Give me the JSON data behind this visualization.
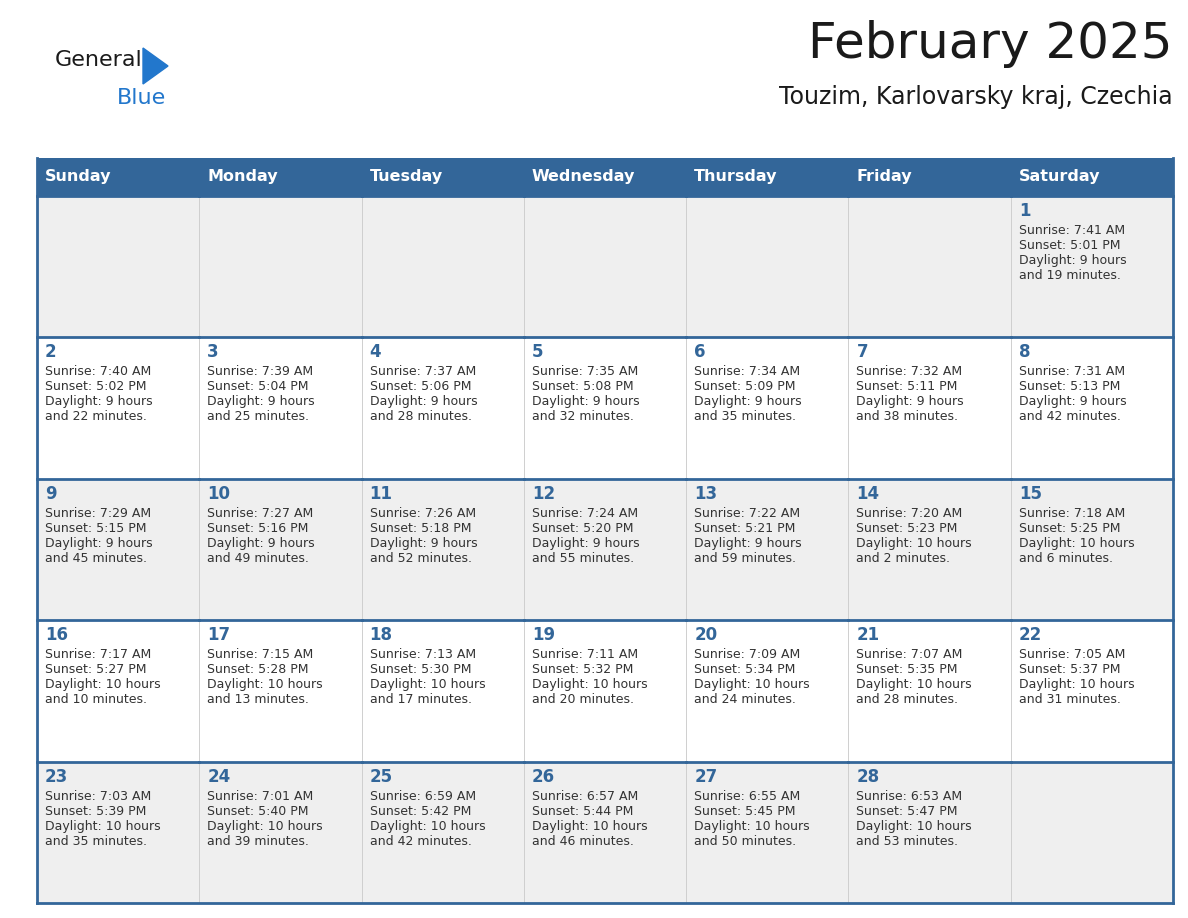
{
  "title": "February 2025",
  "subtitle": "Touzim, Karlovarsky kraj, Czechia",
  "days_of_week": [
    "Sunday",
    "Monday",
    "Tuesday",
    "Wednesday",
    "Thursday",
    "Friday",
    "Saturday"
  ],
  "header_bg": "#336699",
  "header_text": "#ffffff",
  "cell_bg_odd": "#efefef",
  "cell_bg_even": "#ffffff",
  "cell_border_color": "#336699",
  "day_number_color": "#336699",
  "info_text_color": "#333333",
  "logo_general_color": "#1a1a1a",
  "logo_blue_color": "#2277cc",
  "logo_triangle_color": "#2277cc",
  "title_color": "#1a1a1a",
  "subtitle_color": "#1a1a1a",
  "calendar_data": [
    [
      null,
      null,
      null,
      null,
      null,
      null,
      {
        "day": 1,
        "sunrise": "7:41 AM",
        "sunset": "5:01 PM",
        "daylight": "9 hours",
        "daylight2": "and 19 minutes."
      }
    ],
    [
      {
        "day": 2,
        "sunrise": "7:40 AM",
        "sunset": "5:02 PM",
        "daylight": "9 hours",
        "daylight2": "and 22 minutes."
      },
      {
        "day": 3,
        "sunrise": "7:39 AM",
        "sunset": "5:04 PM",
        "daylight": "9 hours",
        "daylight2": "and 25 minutes."
      },
      {
        "day": 4,
        "sunrise": "7:37 AM",
        "sunset": "5:06 PM",
        "daylight": "9 hours",
        "daylight2": "and 28 minutes."
      },
      {
        "day": 5,
        "sunrise": "7:35 AM",
        "sunset": "5:08 PM",
        "daylight": "9 hours",
        "daylight2": "and 32 minutes."
      },
      {
        "day": 6,
        "sunrise": "7:34 AM",
        "sunset": "5:09 PM",
        "daylight": "9 hours",
        "daylight2": "and 35 minutes."
      },
      {
        "day": 7,
        "sunrise": "7:32 AM",
        "sunset": "5:11 PM",
        "daylight": "9 hours",
        "daylight2": "and 38 minutes."
      },
      {
        "day": 8,
        "sunrise": "7:31 AM",
        "sunset": "5:13 PM",
        "daylight": "9 hours",
        "daylight2": "and 42 minutes."
      }
    ],
    [
      {
        "day": 9,
        "sunrise": "7:29 AM",
        "sunset": "5:15 PM",
        "daylight": "9 hours",
        "daylight2": "and 45 minutes."
      },
      {
        "day": 10,
        "sunrise": "7:27 AM",
        "sunset": "5:16 PM",
        "daylight": "9 hours",
        "daylight2": "and 49 minutes."
      },
      {
        "day": 11,
        "sunrise": "7:26 AM",
        "sunset": "5:18 PM",
        "daylight": "9 hours",
        "daylight2": "and 52 minutes."
      },
      {
        "day": 12,
        "sunrise": "7:24 AM",
        "sunset": "5:20 PM",
        "daylight": "9 hours",
        "daylight2": "and 55 minutes."
      },
      {
        "day": 13,
        "sunrise": "7:22 AM",
        "sunset": "5:21 PM",
        "daylight": "9 hours",
        "daylight2": "and 59 minutes."
      },
      {
        "day": 14,
        "sunrise": "7:20 AM",
        "sunset": "5:23 PM",
        "daylight": "10 hours",
        "daylight2": "and 2 minutes."
      },
      {
        "day": 15,
        "sunrise": "7:18 AM",
        "sunset": "5:25 PM",
        "daylight": "10 hours",
        "daylight2": "and 6 minutes."
      }
    ],
    [
      {
        "day": 16,
        "sunrise": "7:17 AM",
        "sunset": "5:27 PM",
        "daylight": "10 hours",
        "daylight2": "and 10 minutes."
      },
      {
        "day": 17,
        "sunrise": "7:15 AM",
        "sunset": "5:28 PM",
        "daylight": "10 hours",
        "daylight2": "and 13 minutes."
      },
      {
        "day": 18,
        "sunrise": "7:13 AM",
        "sunset": "5:30 PM",
        "daylight": "10 hours",
        "daylight2": "and 17 minutes."
      },
      {
        "day": 19,
        "sunrise": "7:11 AM",
        "sunset": "5:32 PM",
        "daylight": "10 hours",
        "daylight2": "and 20 minutes."
      },
      {
        "day": 20,
        "sunrise": "7:09 AM",
        "sunset": "5:34 PM",
        "daylight": "10 hours",
        "daylight2": "and 24 minutes."
      },
      {
        "day": 21,
        "sunrise": "7:07 AM",
        "sunset": "5:35 PM",
        "daylight": "10 hours",
        "daylight2": "and 28 minutes."
      },
      {
        "day": 22,
        "sunrise": "7:05 AM",
        "sunset": "5:37 PM",
        "daylight": "10 hours",
        "daylight2": "and 31 minutes."
      }
    ],
    [
      {
        "day": 23,
        "sunrise": "7:03 AM",
        "sunset": "5:39 PM",
        "daylight": "10 hours",
        "daylight2": "and 35 minutes."
      },
      {
        "day": 24,
        "sunrise": "7:01 AM",
        "sunset": "5:40 PM",
        "daylight": "10 hours",
        "daylight2": "and 39 minutes."
      },
      {
        "day": 25,
        "sunrise": "6:59 AM",
        "sunset": "5:42 PM",
        "daylight": "10 hours",
        "daylight2": "and 42 minutes."
      },
      {
        "day": 26,
        "sunrise": "6:57 AM",
        "sunset": "5:44 PM",
        "daylight": "10 hours",
        "daylight2": "and 46 minutes."
      },
      {
        "day": 27,
        "sunrise": "6:55 AM",
        "sunset": "5:45 PM",
        "daylight": "10 hours",
        "daylight2": "and 50 minutes."
      },
      {
        "day": 28,
        "sunrise": "6:53 AM",
        "sunset": "5:47 PM",
        "daylight": "10 hours",
        "daylight2": "and 53 minutes."
      },
      null
    ]
  ]
}
